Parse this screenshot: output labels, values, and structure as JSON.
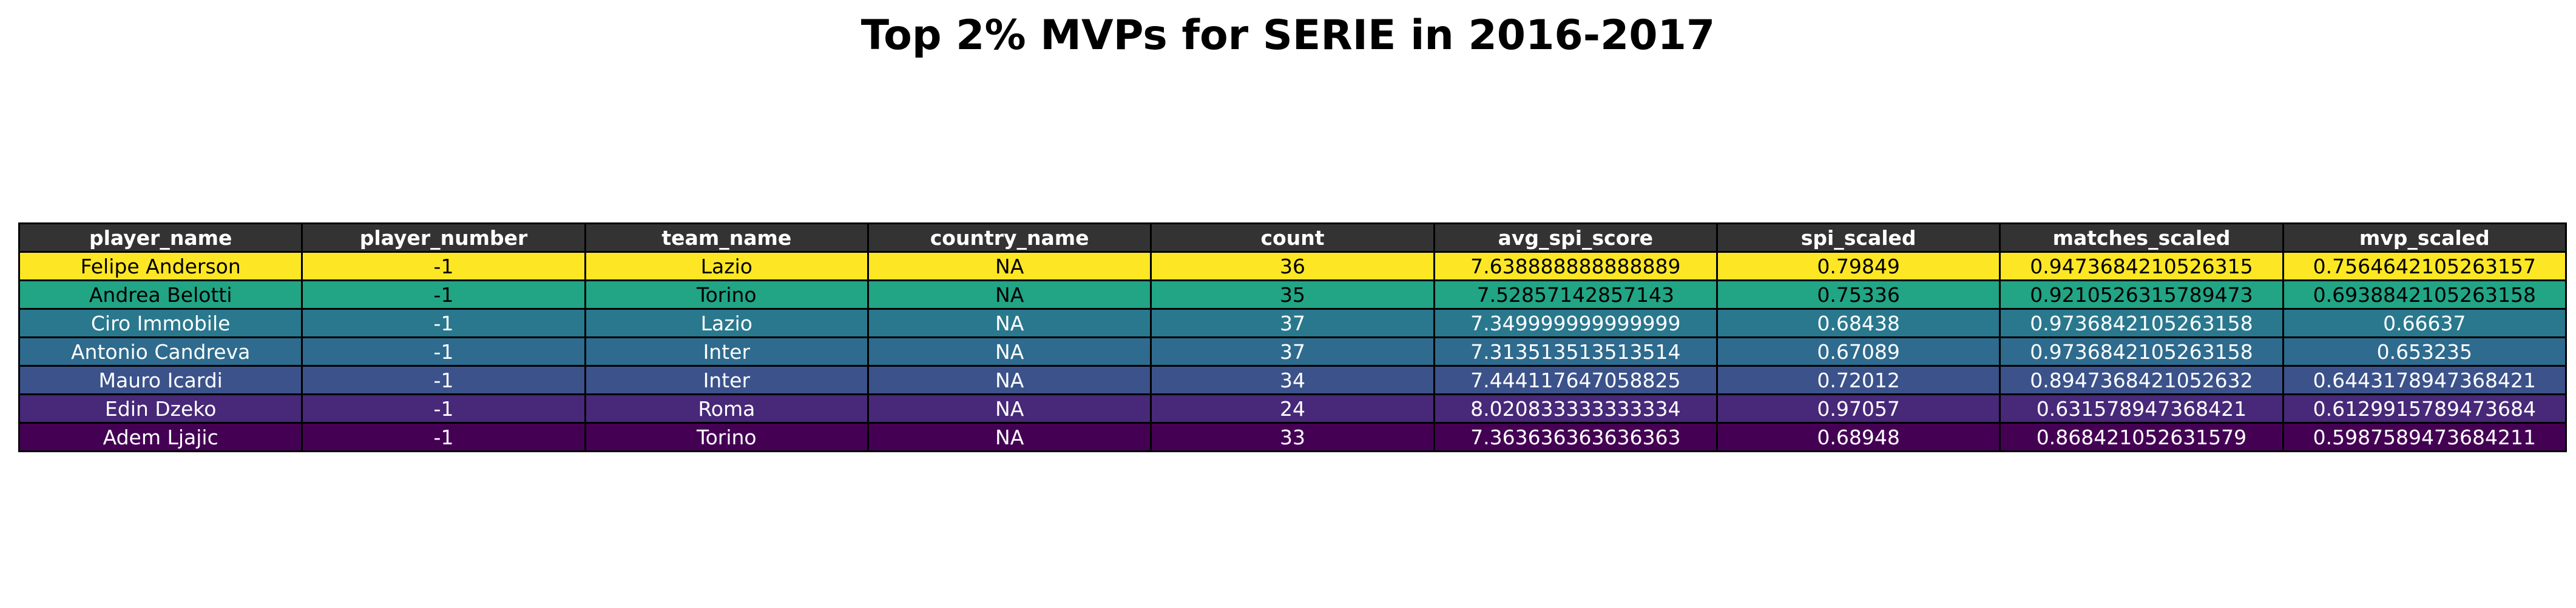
{
  "chart_data": {
    "type": "table",
    "title": "Top 2% MVPs for SERIE in 2016-2017",
    "columns": [
      "player_name",
      "player_number",
      "team_name",
      "country_name",
      "count",
      "avg_spi_score",
      "spi_scaled",
      "matches_scaled",
      "mvp_scaled"
    ],
    "rows": [
      [
        "Felipe Anderson",
        "-1",
        "Lazio",
        "NA",
        "36",
        "7.638888888888889",
        "0.79849",
        "0.9473684210526315",
        "0.7564642105263157"
      ],
      [
        "Andrea Belotti",
        "-1",
        "Torino",
        "NA",
        "35",
        "7.52857142857143",
        "0.75336",
        "0.9210526315789473",
        "0.6938842105263158"
      ],
      [
        "Ciro Immobile",
        "-1",
        "Lazio",
        "NA",
        "37",
        "7.349999999999999",
        "0.68438",
        "0.9736842105263158",
        "0.66637"
      ],
      [
        "Antonio Candreva",
        "-1",
        "Inter",
        "NA",
        "37",
        "7.313513513513514",
        "0.67089",
        "0.9736842105263158",
        "0.653235"
      ],
      [
        "Mauro Icardi",
        "-1",
        "Inter",
        "NA",
        "34",
        "7.444117647058825",
        "0.72012",
        "0.8947368421052632",
        "0.6443178947368421"
      ],
      [
        "Edin Dzeko",
        "-1",
        "Roma",
        "NA",
        "24",
        "8.020833333333334",
        "0.97057",
        "0.631578947368421",
        "0.6129915789473684"
      ],
      [
        "Adem Ljajic",
        "-1",
        "Torino",
        "NA",
        "33",
        "7.363636363636363",
        "0.68948",
        "0.868421052631579",
        "0.5987589473684211"
      ]
    ],
    "header_color": "#333333",
    "header_text_color": "#ffffff",
    "row_colors": [
      "#fde725",
      "#21a585",
      "#2a788e",
      "#2e6b8e",
      "#3b528b",
      "#482878",
      "#440154"
    ],
    "row_text_colors": [
      "#000000",
      "#000000",
      "#ffffff",
      "#ffffff",
      "#ffffff",
      "#ffffff",
      "#ffffff"
    ]
  }
}
